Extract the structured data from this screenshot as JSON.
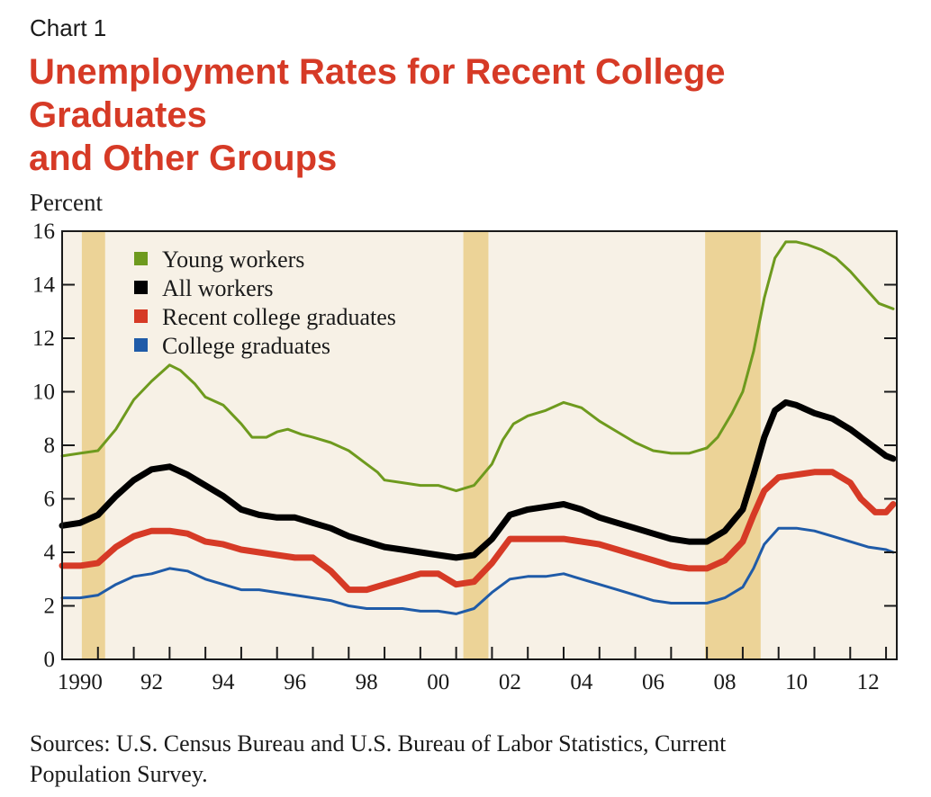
{
  "header": {
    "chart_number": "Chart 1",
    "title_line1": "Unemployment Rates for Recent College Graduates",
    "title_line2": "and Other Groups"
  },
  "footer": {
    "source_line1": "Sources: U.S. Census Bureau and U.S. Bureau of Labor Statistics, Current",
    "source_line2": "Population Survey."
  },
  "chart_data": {
    "type": "line",
    "title": "Unemployment Rates for Recent College Graduates and Other Groups",
    "ylabel": "Percent",
    "xlabel": "",
    "xlim": [
      1990,
      2013.3
    ],
    "ylim": [
      0,
      16
    ],
    "yticks": [
      0,
      2,
      4,
      6,
      8,
      10,
      12,
      14,
      16
    ],
    "xtick_labels": [
      {
        "x": 1990,
        "label": "1990"
      },
      {
        "x": 1992,
        "label": "92"
      },
      {
        "x": 1994,
        "label": "94"
      },
      {
        "x": 1996,
        "label": "96"
      },
      {
        "x": 1998,
        "label": "98"
      },
      {
        "x": 2000,
        "label": "00"
      },
      {
        "x": 2002,
        "label": "02"
      },
      {
        "x": 2004,
        "label": "04"
      },
      {
        "x": 2006,
        "label": "06"
      },
      {
        "x": 2008,
        "label": "08"
      },
      {
        "x": 2010,
        "label": "10"
      },
      {
        "x": 2012,
        "label": "12"
      }
    ],
    "recessions": [
      {
        "start": 1990.55,
        "end": 1991.2
      },
      {
        "start": 2001.2,
        "end": 2001.9
      },
      {
        "start": 2007.95,
        "end": 2009.5
      }
    ],
    "legend_position": "top-left",
    "grid": false,
    "colors": {
      "plot_background": "#f7f1e6",
      "recession_band": "#ecd397",
      "axis": "#1a1a1a"
    },
    "series": [
      {
        "name": "Young workers",
        "color": "#6e9a1e",
        "width": 3,
        "points": [
          [
            1990,
            7.6
          ],
          [
            1990.5,
            7.7
          ],
          [
            1991,
            7.8
          ],
          [
            1991.5,
            8.6
          ],
          [
            1992,
            9.7
          ],
          [
            1992.5,
            10.4
          ],
          [
            1993,
            11.0
          ],
          [
            1993.3,
            10.8
          ],
          [
            1993.7,
            10.3
          ],
          [
            1994,
            9.8
          ],
          [
            1994.5,
            9.5
          ],
          [
            1995,
            8.8
          ],
          [
            1995.3,
            8.3
          ],
          [
            1995.7,
            8.3
          ],
          [
            1996,
            8.5
          ],
          [
            1996.3,
            8.6
          ],
          [
            1996.7,
            8.4
          ],
          [
            1997,
            8.3
          ],
          [
            1997.5,
            8.1
          ],
          [
            1998,
            7.8
          ],
          [
            1998.4,
            7.4
          ],
          [
            1998.8,
            7.0
          ],
          [
            1999,
            6.7
          ],
          [
            1999.5,
            6.6
          ],
          [
            2000,
            6.5
          ],
          [
            2000.5,
            6.5
          ],
          [
            2001,
            6.3
          ],
          [
            2001.5,
            6.5
          ],
          [
            2002,
            7.3
          ],
          [
            2002.3,
            8.2
          ],
          [
            2002.6,
            8.8
          ],
          [
            2003,
            9.1
          ],
          [
            2003.5,
            9.3
          ],
          [
            2004,
            9.6
          ],
          [
            2004.5,
            9.4
          ],
          [
            2005,
            8.9
          ],
          [
            2005.5,
            8.5
          ],
          [
            2006,
            8.1
          ],
          [
            2006.5,
            7.8
          ],
          [
            2007,
            7.7
          ],
          [
            2007.5,
            7.7
          ],
          [
            2008,
            7.9
          ],
          [
            2008.3,
            8.3
          ],
          [
            2008.7,
            9.2
          ],
          [
            2009,
            10.0
          ],
          [
            2009.3,
            11.5
          ],
          [
            2009.6,
            13.5
          ],
          [
            2009.9,
            15.0
          ],
          [
            2010.2,
            15.6
          ],
          [
            2010.5,
            15.6
          ],
          [
            2010.8,
            15.5
          ],
          [
            2011.2,
            15.3
          ],
          [
            2011.6,
            15.0
          ],
          [
            2012,
            14.5
          ],
          [
            2012.4,
            13.9
          ],
          [
            2012.8,
            13.3
          ],
          [
            2013.2,
            13.1
          ]
        ]
      },
      {
        "name": "All workers",
        "color": "#000000",
        "width": 7,
        "points": [
          [
            1990,
            5.0
          ],
          [
            1990.5,
            5.1
          ],
          [
            1991,
            5.4
          ],
          [
            1991.5,
            6.1
          ],
          [
            1992,
            6.7
          ],
          [
            1992.5,
            7.1
          ],
          [
            1993,
            7.2
          ],
          [
            1993.5,
            6.9
          ],
          [
            1994,
            6.5
          ],
          [
            1994.5,
            6.1
          ],
          [
            1995,
            5.6
          ],
          [
            1995.5,
            5.4
          ],
          [
            1996,
            5.3
          ],
          [
            1996.5,
            5.3
          ],
          [
            1997,
            5.1
          ],
          [
            1997.5,
            4.9
          ],
          [
            1998,
            4.6
          ],
          [
            1998.5,
            4.4
          ],
          [
            1999,
            4.2
          ],
          [
            1999.5,
            4.1
          ],
          [
            2000,
            4.0
          ],
          [
            2000.5,
            3.9
          ],
          [
            2001,
            3.8
          ],
          [
            2001.5,
            3.9
          ],
          [
            2002,
            4.5
          ],
          [
            2002.5,
            5.4
          ],
          [
            2003,
            5.6
          ],
          [
            2003.5,
            5.7
          ],
          [
            2004,
            5.8
          ],
          [
            2004.5,
            5.6
          ],
          [
            2005,
            5.3
          ],
          [
            2005.5,
            5.1
          ],
          [
            2006,
            4.9
          ],
          [
            2006.5,
            4.7
          ],
          [
            2007,
            4.5
          ],
          [
            2007.5,
            4.4
          ],
          [
            2008,
            4.4
          ],
          [
            2008.5,
            4.8
          ],
          [
            2009,
            5.6
          ],
          [
            2009.3,
            6.9
          ],
          [
            2009.6,
            8.3
          ],
          [
            2009.9,
            9.3
          ],
          [
            2010.2,
            9.6
          ],
          [
            2010.5,
            9.5
          ],
          [
            2011,
            9.2
          ],
          [
            2011.5,
            9.0
          ],
          [
            2012,
            8.6
          ],
          [
            2012.5,
            8.1
          ],
          [
            2013,
            7.6
          ],
          [
            2013.2,
            7.5
          ]
        ]
      },
      {
        "name": "Recent college graduates",
        "color": "#d63a26",
        "width": 7,
        "points": [
          [
            1990,
            3.5
          ],
          [
            1990.5,
            3.5
          ],
          [
            1991,
            3.6
          ],
          [
            1991.5,
            4.2
          ],
          [
            1992,
            4.6
          ],
          [
            1992.5,
            4.8
          ],
          [
            1993,
            4.8
          ],
          [
            1993.5,
            4.7
          ],
          [
            1994,
            4.4
          ],
          [
            1994.5,
            4.3
          ],
          [
            1995,
            4.1
          ],
          [
            1995.5,
            4.0
          ],
          [
            1996,
            3.9
          ],
          [
            1996.5,
            3.8
          ],
          [
            1997,
            3.8
          ],
          [
            1997.5,
            3.3
          ],
          [
            1998,
            2.6
          ],
          [
            1998.5,
            2.6
          ],
          [
            1999,
            2.8
          ],
          [
            1999.5,
            3.0
          ],
          [
            2000,
            3.2
          ],
          [
            2000.5,
            3.2
          ],
          [
            2001,
            2.8
          ],
          [
            2001.5,
            2.9
          ],
          [
            2002,
            3.6
          ],
          [
            2002.5,
            4.5
          ],
          [
            2003,
            4.5
          ],
          [
            2003.5,
            4.5
          ],
          [
            2004,
            4.5
          ],
          [
            2004.5,
            4.4
          ],
          [
            2005,
            4.3
          ],
          [
            2005.5,
            4.1
          ],
          [
            2006,
            3.9
          ],
          [
            2006.5,
            3.7
          ],
          [
            2007,
            3.5
          ],
          [
            2007.5,
            3.4
          ],
          [
            2008,
            3.4
          ],
          [
            2008.5,
            3.7
          ],
          [
            2009,
            4.4
          ],
          [
            2009.3,
            5.4
          ],
          [
            2009.6,
            6.3
          ],
          [
            2010,
            6.8
          ],
          [
            2010.5,
            6.9
          ],
          [
            2011,
            7.0
          ],
          [
            2011.5,
            7.0
          ],
          [
            2012,
            6.6
          ],
          [
            2012.3,
            6.0
          ],
          [
            2012.7,
            5.5
          ],
          [
            2013,
            5.5
          ],
          [
            2013.2,
            5.8
          ]
        ]
      },
      {
        "name": "College graduates",
        "color": "#1f5ba8",
        "width": 3,
        "points": [
          [
            1990,
            2.3
          ],
          [
            1990.5,
            2.3
          ],
          [
            1991,
            2.4
          ],
          [
            1991.5,
            2.8
          ],
          [
            1992,
            3.1
          ],
          [
            1992.5,
            3.2
          ],
          [
            1993,
            3.4
          ],
          [
            1993.5,
            3.3
          ],
          [
            1994,
            3.0
          ],
          [
            1994.5,
            2.8
          ],
          [
            1995,
            2.6
          ],
          [
            1995.5,
            2.6
          ],
          [
            1996,
            2.5
          ],
          [
            1996.5,
            2.4
          ],
          [
            1997,
            2.3
          ],
          [
            1997.5,
            2.2
          ],
          [
            1998,
            2.0
          ],
          [
            1998.5,
            1.9
          ],
          [
            1999,
            1.9
          ],
          [
            1999.5,
            1.9
          ],
          [
            2000,
            1.8
          ],
          [
            2000.5,
            1.8
          ],
          [
            2001,
            1.7
          ],
          [
            2001.5,
            1.9
          ],
          [
            2002,
            2.5
          ],
          [
            2002.5,
            3.0
          ],
          [
            2003,
            3.1
          ],
          [
            2003.5,
            3.1
          ],
          [
            2004,
            3.2
          ],
          [
            2004.5,
            3.0
          ],
          [
            2005,
            2.8
          ],
          [
            2005.5,
            2.6
          ],
          [
            2006,
            2.4
          ],
          [
            2006.5,
            2.2
          ],
          [
            2007,
            2.1
          ],
          [
            2007.5,
            2.1
          ],
          [
            2008,
            2.1
          ],
          [
            2008.5,
            2.3
          ],
          [
            2009,
            2.7
          ],
          [
            2009.3,
            3.4
          ],
          [
            2009.6,
            4.3
          ],
          [
            2010,
            4.9
          ],
          [
            2010.5,
            4.9
          ],
          [
            2011,
            4.8
          ],
          [
            2011.5,
            4.6
          ],
          [
            2012,
            4.4
          ],
          [
            2012.5,
            4.2
          ],
          [
            2013,
            4.1
          ],
          [
            2013.2,
            4.0
          ]
        ]
      }
    ]
  }
}
